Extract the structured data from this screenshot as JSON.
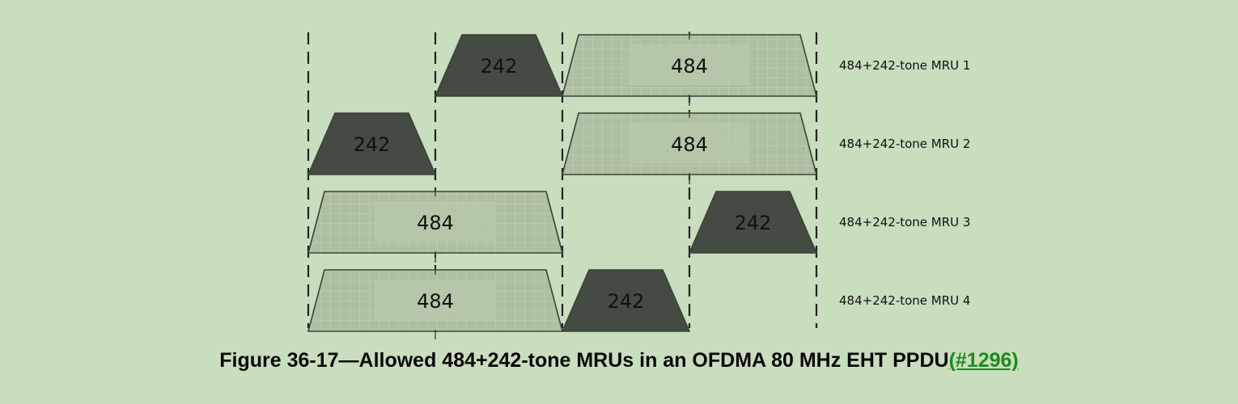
{
  "figure": {
    "caption_text": "Figure 36-17—Allowed 484+242-tone MRUs in an OFDMA 80 MHz EHT PPDU",
    "caption_ref": "(#1296)"
  },
  "rows": [
    {
      "label": "484+242-tone MRU 1",
      "blocks": [
        {
          "tones": "242",
          "start_segment": 1,
          "span_segments": 1,
          "style": "dark"
        },
        {
          "tones": "484",
          "start_segment": 2,
          "span_segments": 2,
          "style": "light"
        }
      ]
    },
    {
      "label": "484+242-tone MRU 2",
      "blocks": [
        {
          "tones": "242",
          "start_segment": 0,
          "span_segments": 1,
          "style": "dark"
        },
        {
          "tones": "484",
          "start_segment": 2,
          "span_segments": 2,
          "style": "light"
        }
      ]
    },
    {
      "label": "484+242-tone MRU 3",
      "blocks": [
        {
          "tones": "484",
          "start_segment": 0,
          "span_segments": 2,
          "style": "light"
        },
        {
          "tones": "242",
          "start_segment": 3,
          "span_segments": 1,
          "style": "dark"
        }
      ]
    },
    {
      "label": "484+242-tone MRU 4",
      "blocks": [
        {
          "tones": "484",
          "start_segment": 0,
          "span_segments": 2,
          "style": "light"
        },
        {
          "tones": "242",
          "start_segment": 2,
          "span_segments": 1,
          "style": "dark"
        }
      ]
    }
  ],
  "colors": {
    "background": "#c9ddbf",
    "dark_block": "#444b42",
    "light_block": "#aebfa2",
    "link": "#1e8a1e"
  }
}
